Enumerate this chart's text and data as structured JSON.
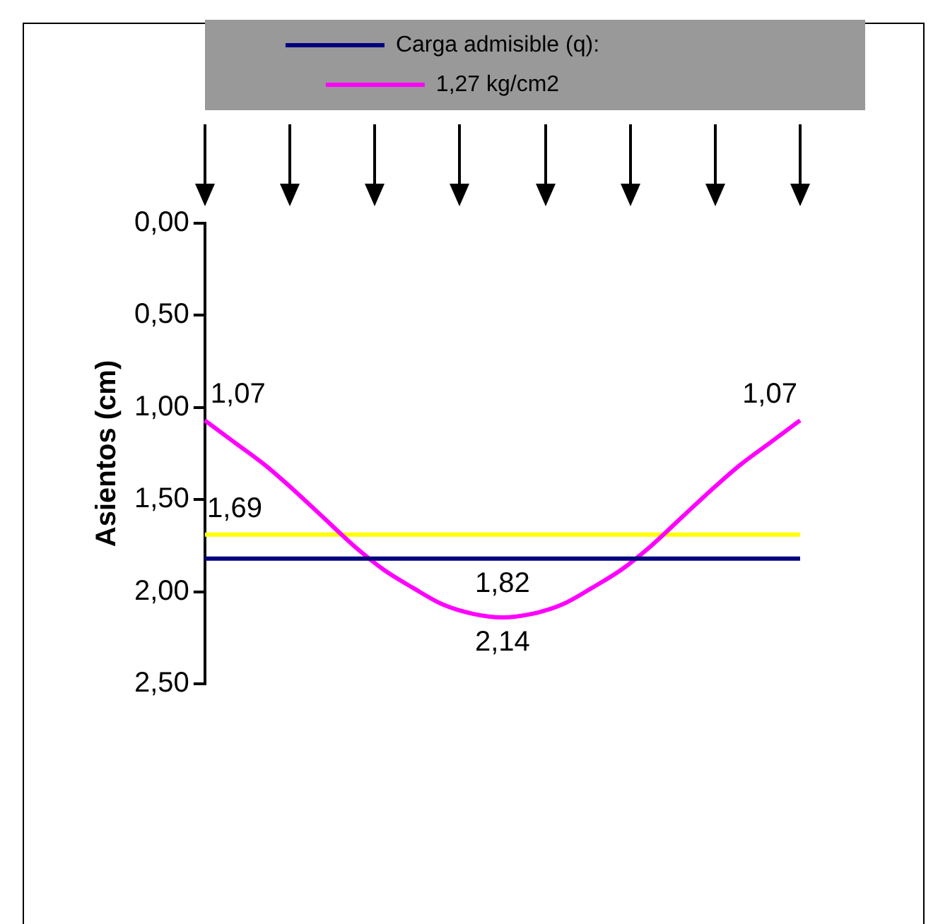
{
  "chart_data": {
    "type": "line",
    "ylabel": "Asientos (cm)",
    "categories": [
      null,
      null,
      null,
      null,
      null,
      null,
      null,
      null,
      null,
      null,
      null,
      null,
      null,
      null,
      null,
      null,
      null,
      null,
      null,
      null,
      null
    ],
    "ylim": [
      2.5,
      0
    ],
    "yticks": [
      {
        "value": 0,
        "label": "0,00"
      },
      {
        "value": 0.5,
        "label": "0,50"
      },
      {
        "value": 1,
        "label": "1,00"
      },
      {
        "value": 1.5,
        "label": "1,50"
      },
      {
        "value": 2,
        "label": "2,00"
      },
      {
        "value": 2.5,
        "label": "2,50"
      }
    ],
    "series": [
      {
        "name": "Carga admisible (q):",
        "color": "#000080",
        "values": [
          1.82,
          1.82,
          1.82,
          1.82,
          1.82,
          1.82,
          1.82,
          1.82,
          1.82,
          1.82,
          1.82,
          1.82,
          1.82,
          1.82,
          1.82,
          1.82,
          1.82,
          1.82,
          1.82,
          1.82,
          1.82
        ],
        "value_labels": [
          null,
          null,
          null,
          null,
          null,
          null,
          null,
          null,
          null,
          null,
          "1,82",
          null,
          null,
          null,
          null,
          null,
          null,
          null,
          null,
          null,
          null
        ]
      },
      {
        "name": "1,27 kg/cm2",
        "color": "#ff00ff",
        "values": [
          1.07,
          1.19,
          1.31,
          1.45,
          1.6,
          1.75,
          1.88,
          1.98,
          2.07,
          2.12,
          2.14,
          2.12,
          2.07,
          1.98,
          1.88,
          1.75,
          1.6,
          1.45,
          1.31,
          1.19,
          1.07
        ],
        "value_labels": [
          "1,07",
          null,
          null,
          null,
          null,
          null,
          null,
          null,
          null,
          null,
          "2,14",
          null,
          null,
          null,
          null,
          null,
          null,
          null,
          null,
          null,
          "1,07"
        ]
      },
      {
        "color": "#ffff00",
        "values": [
          1.69,
          1.69,
          1.69,
          1.69,
          1.69,
          1.69,
          1.69,
          1.69,
          1.69,
          1.69,
          1.69,
          1.69,
          1.69,
          1.69,
          1.69,
          1.69,
          1.69,
          1.69,
          1.69,
          1.69,
          1.69
        ],
        "value_labels": [
          null,
          "1,69",
          null,
          null,
          null,
          null,
          null,
          null,
          null,
          null,
          null,
          null,
          null,
          null,
          null,
          null,
          null,
          null,
          null,
          null,
          null
        ]
      }
    ],
    "legend": "top",
    "grid": false,
    "marker": "none",
    "line_style": "solid"
  }
}
